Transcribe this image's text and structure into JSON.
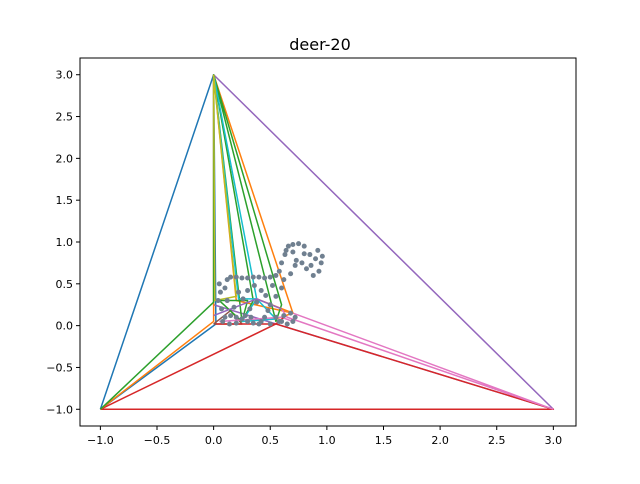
{
  "chart_data": {
    "type": "line",
    "title": "deer-20",
    "xlabel": "",
    "ylabel": "",
    "xlim": [
      -1.18,
      3.2
    ],
    "ylim": [
      -1.2,
      3.2
    ],
    "grid": false,
    "x_ticks": [
      -1.0,
      -0.5,
      0.0,
      0.5,
      1.0,
      1.5,
      2.0,
      2.5,
      3.0
    ],
    "y_ticks": [
      -1.0,
      -0.5,
      0.0,
      0.5,
      1.0,
      1.5,
      2.0,
      2.5,
      3.0
    ],
    "x_tick_labels": [
      "−1.0",
      "−0.5",
      "0.0",
      "0.5",
      "1.0",
      "1.5",
      "2.0",
      "2.5",
      "3.0"
    ],
    "y_tick_labels": [
      "−1.0",
      "−0.5",
      "0.0",
      "0.5",
      "1.0",
      "1.5",
      "2.0",
      "2.5",
      "3.0"
    ],
    "scatter": {
      "color": "#708090",
      "points": [
        [
          0.05,
          0.5
        ],
        [
          0.06,
          0.4
        ],
        [
          0.04,
          0.3
        ],
        [
          0.07,
          0.2
        ],
        [
          0.1,
          0.45
        ],
        [
          0.12,
          0.55
        ],
        [
          0.15,
          0.58
        ],
        [
          0.2,
          0.58
        ],
        [
          0.25,
          0.57
        ],
        [
          0.3,
          0.57
        ],
        [
          0.35,
          0.58
        ],
        [
          0.4,
          0.58
        ],
        [
          0.45,
          0.57
        ],
        [
          0.5,
          0.58
        ],
        [
          0.55,
          0.6
        ],
        [
          0.58,
          0.65
        ],
        [
          0.6,
          0.75
        ],
        [
          0.63,
          0.85
        ],
        [
          0.66,
          0.95
        ],
        [
          0.7,
          0.97
        ],
        [
          0.75,
          0.98
        ],
        [
          0.8,
          0.95
        ],
        [
          0.85,
          0.85
        ],
        [
          0.9,
          0.8
        ],
        [
          0.95,
          0.75
        ],
        [
          0.93,
          0.65
        ],
        [
          0.88,
          0.6
        ],
        [
          0.82,
          0.68
        ],
        [
          0.78,
          0.75
        ],
        [
          0.72,
          0.72
        ],
        [
          0.68,
          0.62
        ],
        [
          0.62,
          0.55
        ],
        [
          0.6,
          0.45
        ],
        [
          0.55,
          0.35
        ],
        [
          0.5,
          0.25
        ],
        [
          0.48,
          0.18
        ],
        [
          0.45,
          0.1
        ],
        [
          0.42,
          0.05
        ],
        [
          0.4,
          0.02
        ],
        [
          0.35,
          0.03
        ],
        [
          0.3,
          0.05
        ],
        [
          0.25,
          0.08
        ],
        [
          0.2,
          0.1
        ],
        [
          0.15,
          0.12
        ],
        [
          0.1,
          0.1
        ],
        [
          0.08,
          0.05
        ],
        [
          0.55,
          0.1
        ],
        [
          0.6,
          0.05
        ],
        [
          0.65,
          0.02
        ],
        [
          0.7,
          0.05
        ],
        [
          0.72,
          0.1
        ],
        [
          0.68,
          0.15
        ],
        [
          0.62,
          0.12
        ],
        [
          0.58,
          0.05
        ],
        [
          0.5,
          0.02
        ],
        [
          0.73,
          0.78
        ],
        [
          0.8,
          0.86
        ],
        [
          0.92,
          0.9
        ],
        [
          0.96,
          0.83
        ],
        [
          0.86,
          0.72
        ],
        [
          0.64,
          0.9
        ],
        [
          0.7,
          0.88
        ],
        [
          0.52,
          0.48
        ],
        [
          0.46,
          0.36
        ],
        [
          0.38,
          0.28
        ],
        [
          0.32,
          0.2
        ],
        [
          0.18,
          0.22
        ],
        [
          0.12,
          0.3
        ],
        [
          0.22,
          0.4
        ],
        [
          0.26,
          0.32
        ],
        [
          0.3,
          0.42
        ],
        [
          0.36,
          0.48
        ],
        [
          0.42,
          0.42
        ],
        [
          0.14,
          0.02
        ],
        [
          0.2,
          0.03
        ],
        [
          0.28,
          0.12
        ],
        [
          0.33,
          0.1
        ]
      ]
    },
    "series": [
      {
        "color": "#1f77b4",
        "points": [
          [
            -1,
            -1
          ],
          [
            0,
            3
          ],
          [
            0.02,
            0.02
          ],
          [
            -1,
            -1
          ]
        ]
      },
      {
        "color": "#9467bd",
        "points": [
          [
            0,
            3
          ],
          [
            3,
            -1
          ],
          [
            0,
            0.25
          ],
          [
            0,
            3
          ]
        ]
      },
      {
        "color": "#d62728",
        "points": [
          [
            -1,
            -1
          ],
          [
            3,
            -1
          ],
          [
            0.55,
            0.02
          ],
          [
            -1,
            -1
          ]
        ]
      },
      {
        "color": "#ff7f0e",
        "points": [
          [
            -1,
            -1
          ],
          [
            0,
            0.05
          ],
          [
            0,
            3
          ],
          [
            0.7,
            0.15
          ],
          [
            0.2,
            0.3
          ],
          [
            0,
            3
          ]
        ]
      },
      {
        "color": "#2ca02c",
        "points": [
          [
            -1,
            -1
          ],
          [
            0,
            0.28
          ],
          [
            0,
            3
          ],
          [
            0.35,
            0.3
          ],
          [
            0.25,
            0.05
          ],
          [
            0,
            3
          ]
        ]
      },
      {
        "color": "#2ca02c",
        "points": [
          [
            0,
            3
          ],
          [
            0.6,
            0.25
          ],
          [
            0.55,
            0.05
          ],
          [
            0,
            3
          ]
        ]
      },
      {
        "color": "#17becf",
        "points": [
          [
            0,
            3
          ],
          [
            0.22,
            0.32
          ],
          [
            0.38,
            0.32
          ],
          [
            0,
            3
          ]
        ]
      },
      {
        "color": "#bcbd22",
        "points": [
          [
            0,
            3
          ],
          [
            0.01,
            0.3
          ],
          [
            0.2,
            0.35
          ],
          [
            0,
            3
          ]
        ]
      },
      {
        "color": "#e377c2",
        "points": [
          [
            3,
            -1
          ],
          [
            0.6,
            0.2
          ],
          [
            0.65,
            0.1
          ],
          [
            3,
            -1
          ]
        ]
      },
      {
        "color": "#8c564b",
        "points": [
          [
            0.0,
            0.02
          ],
          [
            0.25,
            0.02
          ],
          [
            0.15,
            0.18
          ],
          [
            0.0,
            0.02
          ]
        ]
      },
      {
        "color": "#2ca02c",
        "points": [
          [
            0.05,
            0.3
          ],
          [
            0.3,
            0.3
          ],
          [
            0.25,
            0.05
          ],
          [
            0.05,
            0.3
          ]
        ]
      },
      {
        "color": "#17becf",
        "points": [
          [
            0.25,
            0.05
          ],
          [
            0.38,
            0.32
          ],
          [
            0.55,
            0.08
          ],
          [
            0.25,
            0.05
          ]
        ]
      },
      {
        "color": "#ff7f0e",
        "points": [
          [
            0.38,
            0.32
          ],
          [
            0.7,
            0.15
          ],
          [
            0.55,
            0.08
          ]
        ]
      },
      {
        "color": "#9467bd",
        "points": [
          [
            0.0,
            0.12
          ],
          [
            0.38,
            0.32
          ],
          [
            0.6,
            0.2
          ]
        ]
      },
      {
        "color": "#e377c2",
        "points": [
          [
            0.05,
            0.05
          ],
          [
            0.6,
            0.1
          ],
          [
            0.7,
            0.05
          ]
        ]
      },
      {
        "color": "#d62728",
        "points": [
          [
            0.02,
            0.02
          ],
          [
            0.55,
            0.02
          ],
          [
            0.62,
            0.1
          ]
        ]
      }
    ]
  }
}
